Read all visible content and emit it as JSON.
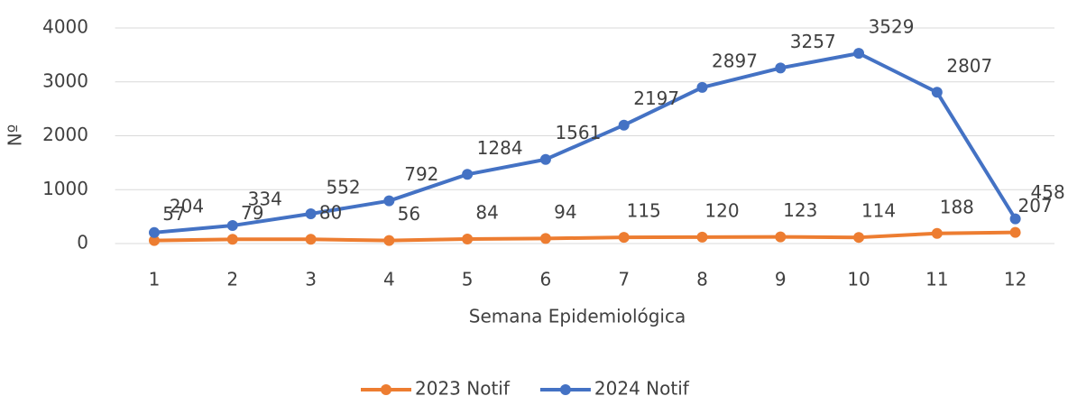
{
  "chart_data": {
    "type": "line",
    "categories": [
      "1",
      "2",
      "3",
      "4",
      "5",
      "6",
      "7",
      "8",
      "9",
      "10",
      "11",
      "12"
    ],
    "series": [
      {
        "name": "2023 Notif",
        "color": "#ED7D31",
        "values": [
          57,
          79,
          80,
          56,
          84,
          94,
          115,
          120,
          123,
          114,
          188,
          207
        ]
      },
      {
        "name": "2024 Notif",
        "color": "#4472C4",
        "values": [
          204,
          334,
          552,
          792,
          1284,
          1561,
          2197,
          2897,
          3257,
          3529,
          2807,
          458
        ]
      }
    ],
    "ylim": [
      0,
      4000
    ],
    "yticks": [
      0,
      1000,
      2000,
      3000,
      4000
    ],
    "grid": true,
    "y_label": "Nº",
    "x_label": "Semana Epidemiológica",
    "legend": "bottom"
  }
}
